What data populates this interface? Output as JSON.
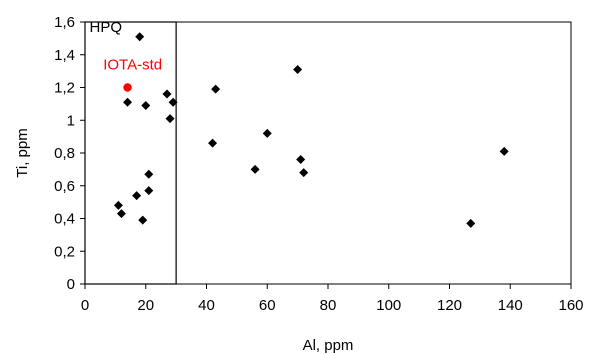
{
  "chart_data": {
    "type": "scatter",
    "xlabel": "Al, ppm",
    "ylabel": "Ti, ppm",
    "xlim": [
      0,
      160
    ],
    "ylim": [
      0,
      1.6
    ],
    "x_ticks": [
      "0",
      "20",
      "40",
      "60",
      "80",
      "100",
      "120",
      "140",
      "160"
    ],
    "y_ticks": [
      "0",
      "0,2",
      "0,4",
      "0,6",
      "0,8",
      "1",
      "1,2",
      "1,4",
      "1,6"
    ],
    "grid": false,
    "legend": "none",
    "series": [
      {
        "marker": "diamond",
        "color": "#000000",
        "points": [
          [
            18,
            1.51
          ],
          [
            14,
            1.11
          ],
          [
            20,
            1.09
          ],
          [
            27,
            1.16
          ],
          [
            29,
            1.11
          ],
          [
            28,
            1.01
          ],
          [
            21,
            0.67
          ],
          [
            21,
            0.57
          ],
          [
            17,
            0.54
          ],
          [
            11,
            0.48
          ],
          [
            12,
            0.43
          ],
          [
            19,
            0.39
          ],
          [
            43,
            1.19
          ],
          [
            42,
            0.86
          ],
          [
            60,
            0.92
          ],
          [
            56,
            0.7
          ],
          [
            70,
            1.31
          ],
          [
            71,
            0.76
          ],
          [
            72,
            0.68
          ],
          [
            127,
            0.37
          ],
          [
            138,
            0.81
          ]
        ]
      },
      {
        "marker": "circle",
        "color": "#ff0000",
        "points": [
          [
            14,
            1.2
          ]
        ]
      }
    ],
    "annotations": [
      {
        "text": "HPQ",
        "x": 1.5,
        "y": 1.54,
        "color": "#000000"
      },
      {
        "text": "IOTA-std",
        "x": 6,
        "y": 1.31,
        "color": "#ff0000"
      }
    ],
    "region_box": {
      "x0": 0,
      "x1": 30,
      "y0": 0,
      "y1": 1.6,
      "color": "#000000"
    }
  }
}
